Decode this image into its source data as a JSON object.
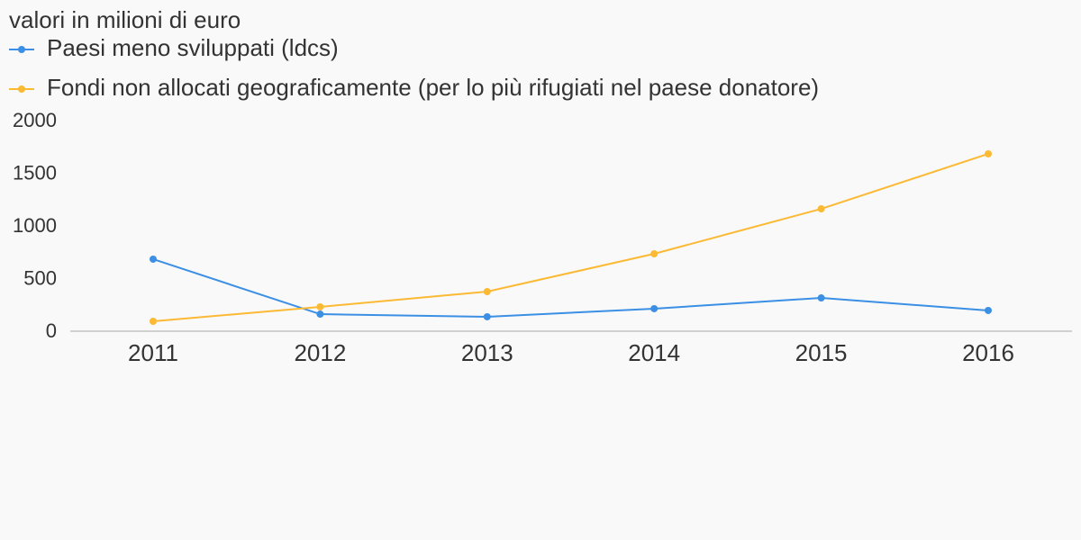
{
  "chart_data": {
    "type": "line",
    "title": "valori in milioni di euro",
    "categories": [
      "2011",
      "2012",
      "2013",
      "2014",
      "2015",
      "2016"
    ],
    "series": [
      {
        "name": "Paesi meno sviluppati (ldcs)",
        "color": "#3b8fe4",
        "values": [
          684,
          162,
          137,
          214,
          316,
          197
        ]
      },
      {
        "name": "Fondi non allocati geograficamente (per lo più rifugiati nel paese donatore)",
        "color": "#fbb934",
        "values": [
          94,
          231,
          376,
          735,
          1162,
          1684
        ]
      }
    ],
    "ylim": [
      0,
      2000
    ],
    "yticks": [
      0,
      500,
      1000,
      1500,
      2000
    ],
    "grid": false
  }
}
